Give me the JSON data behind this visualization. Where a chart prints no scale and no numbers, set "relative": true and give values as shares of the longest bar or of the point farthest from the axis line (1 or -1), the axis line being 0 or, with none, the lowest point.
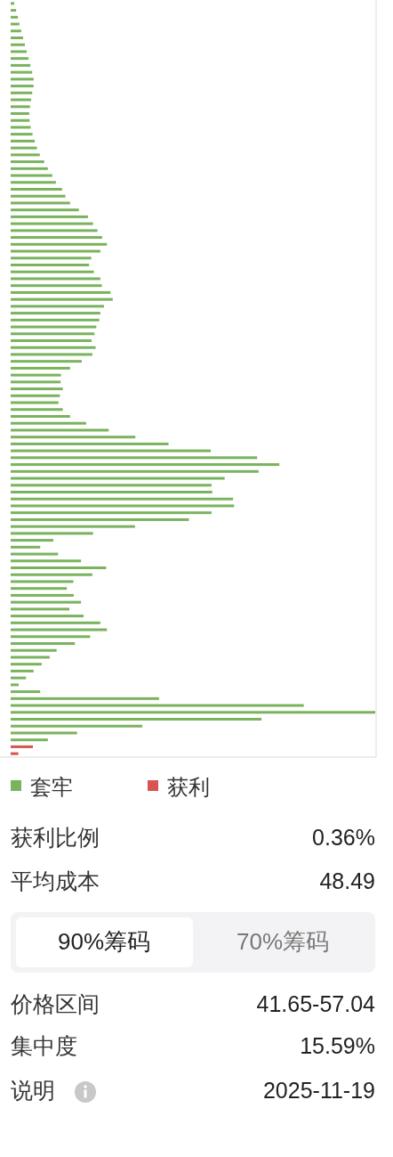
{
  "chart_data": [
    {
      "type": "bar",
      "orientation": "horizontal",
      "stacked": true,
      "relative": true,
      "legend": "bottom",
      "categories": [
        null,
        null,
        null,
        null,
        null,
        null,
        null,
        null,
        null,
        null,
        null,
        null,
        null,
        null,
        null,
        null,
        null,
        null,
        null,
        null,
        null,
        null,
        null,
        null,
        null,
        null,
        null,
        null,
        null,
        null,
        null,
        null,
        null,
        null,
        null,
        null,
        null,
        null,
        null,
        null,
        null,
        null,
        null,
        null,
        null,
        null,
        null,
        null,
        null,
        null,
        null,
        null,
        null,
        null,
        null,
        null,
        null,
        null,
        null,
        null,
        null,
        null,
        null,
        null,
        null,
        null,
        null,
        null,
        null,
        null,
        null,
        null,
        null,
        null,
        null,
        null,
        null,
        null,
        null,
        null,
        null,
        null,
        null,
        null,
        null,
        null,
        null,
        null,
        null,
        null,
        null,
        null,
        null,
        null,
        null,
        null,
        null,
        null,
        null,
        null,
        null,
        null,
        null,
        null,
        null,
        null,
        null,
        null,
        null,
        null
      ],
      "series": [
        {
          "name": "套牢",
          "color": "#7ab35e",
          "values": [
            0.01,
            0.015,
            0.02,
            0.024,
            0.029,
            0.034,
            0.039,
            0.044,
            0.049,
            0.054,
            0.059,
            0.063,
            0.063,
            0.059,
            0.056,
            0.053,
            0.051,
            0.052,
            0.055,
            0.06,
            0.066,
            0.072,
            0.08,
            0.092,
            0.102,
            0.114,
            0.124,
            0.141,
            0.15,
            0.163,
            0.187,
            0.212,
            0.226,
            0.238,
            0.251,
            0.264,
            0.246,
            0.221,
            0.215,
            0.228,
            0.246,
            0.25,
            0.274,
            0.28,
            0.256,
            0.246,
            0.243,
            0.235,
            0.23,
            0.222,
            0.233,
            0.224,
            0.195,
            0.163,
            0.138,
            0.137,
            0.143,
            0.135,
            0.131,
            0.143,
            0.163,
            0.207,
            0.269,
            0.342,
            0.433,
            0.549,
            0.676,
            0.737,
            0.68,
            0.587,
            0.551,
            0.553,
            0.61,
            0.613,
            0.551,
            0.489,
            0.341,
            0.226,
            0.117,
            0.081,
            0.13,
            0.193,
            0.262,
            0.224,
            0.172,
            0.154,
            0.173,
            0.193,
            0.161,
            0.2,
            0.246,
            0.264,
            0.218,
            0.176,
            0.126,
            0.107,
            0.085,
            0.063,
            0.042,
            0.022,
            0.081,
            0.407,
            0.804,
            1,
            0.688,
            0.361,
            0.182,
            0.102,
            0,
            0
          ]
        },
        {
          "name": "获利",
          "color": "#d9534f",
          "values": [
            0,
            0,
            0,
            0,
            0,
            0,
            0,
            0,
            0,
            0,
            0,
            0,
            0,
            0,
            0,
            0,
            0,
            0,
            0,
            0,
            0,
            0,
            0,
            0,
            0,
            0,
            0,
            0,
            0,
            0,
            0,
            0,
            0,
            0,
            0,
            0,
            0,
            0,
            0,
            0,
            0,
            0,
            0,
            0,
            0,
            0,
            0,
            0,
            0,
            0,
            0,
            0,
            0,
            0,
            0,
            0,
            0,
            0,
            0,
            0,
            0,
            0,
            0,
            0,
            0,
            0,
            0,
            0,
            0,
            0,
            0,
            0,
            0,
            0,
            0,
            0,
            0,
            0,
            0,
            0,
            0,
            0,
            0,
            0,
            0,
            0,
            0,
            0,
            0,
            0,
            0,
            0,
            0,
            0,
            0,
            0,
            0,
            0,
            0,
            0,
            0,
            0,
            0,
            0,
            0,
            0,
            0,
            0,
            0.061,
            0.021
          ]
        }
      ]
    },
    {
      "type": "other",
      "annotations": [
        "获利比例",
        "0.36%",
        "平均成本",
        "48.49",
        "90%筹码",
        "70%筹码",
        "价格区间",
        "41.65-57.04",
        "集中度",
        "15.59%",
        "说明",
        "2025-11-19"
      ]
    }
  ]
}
